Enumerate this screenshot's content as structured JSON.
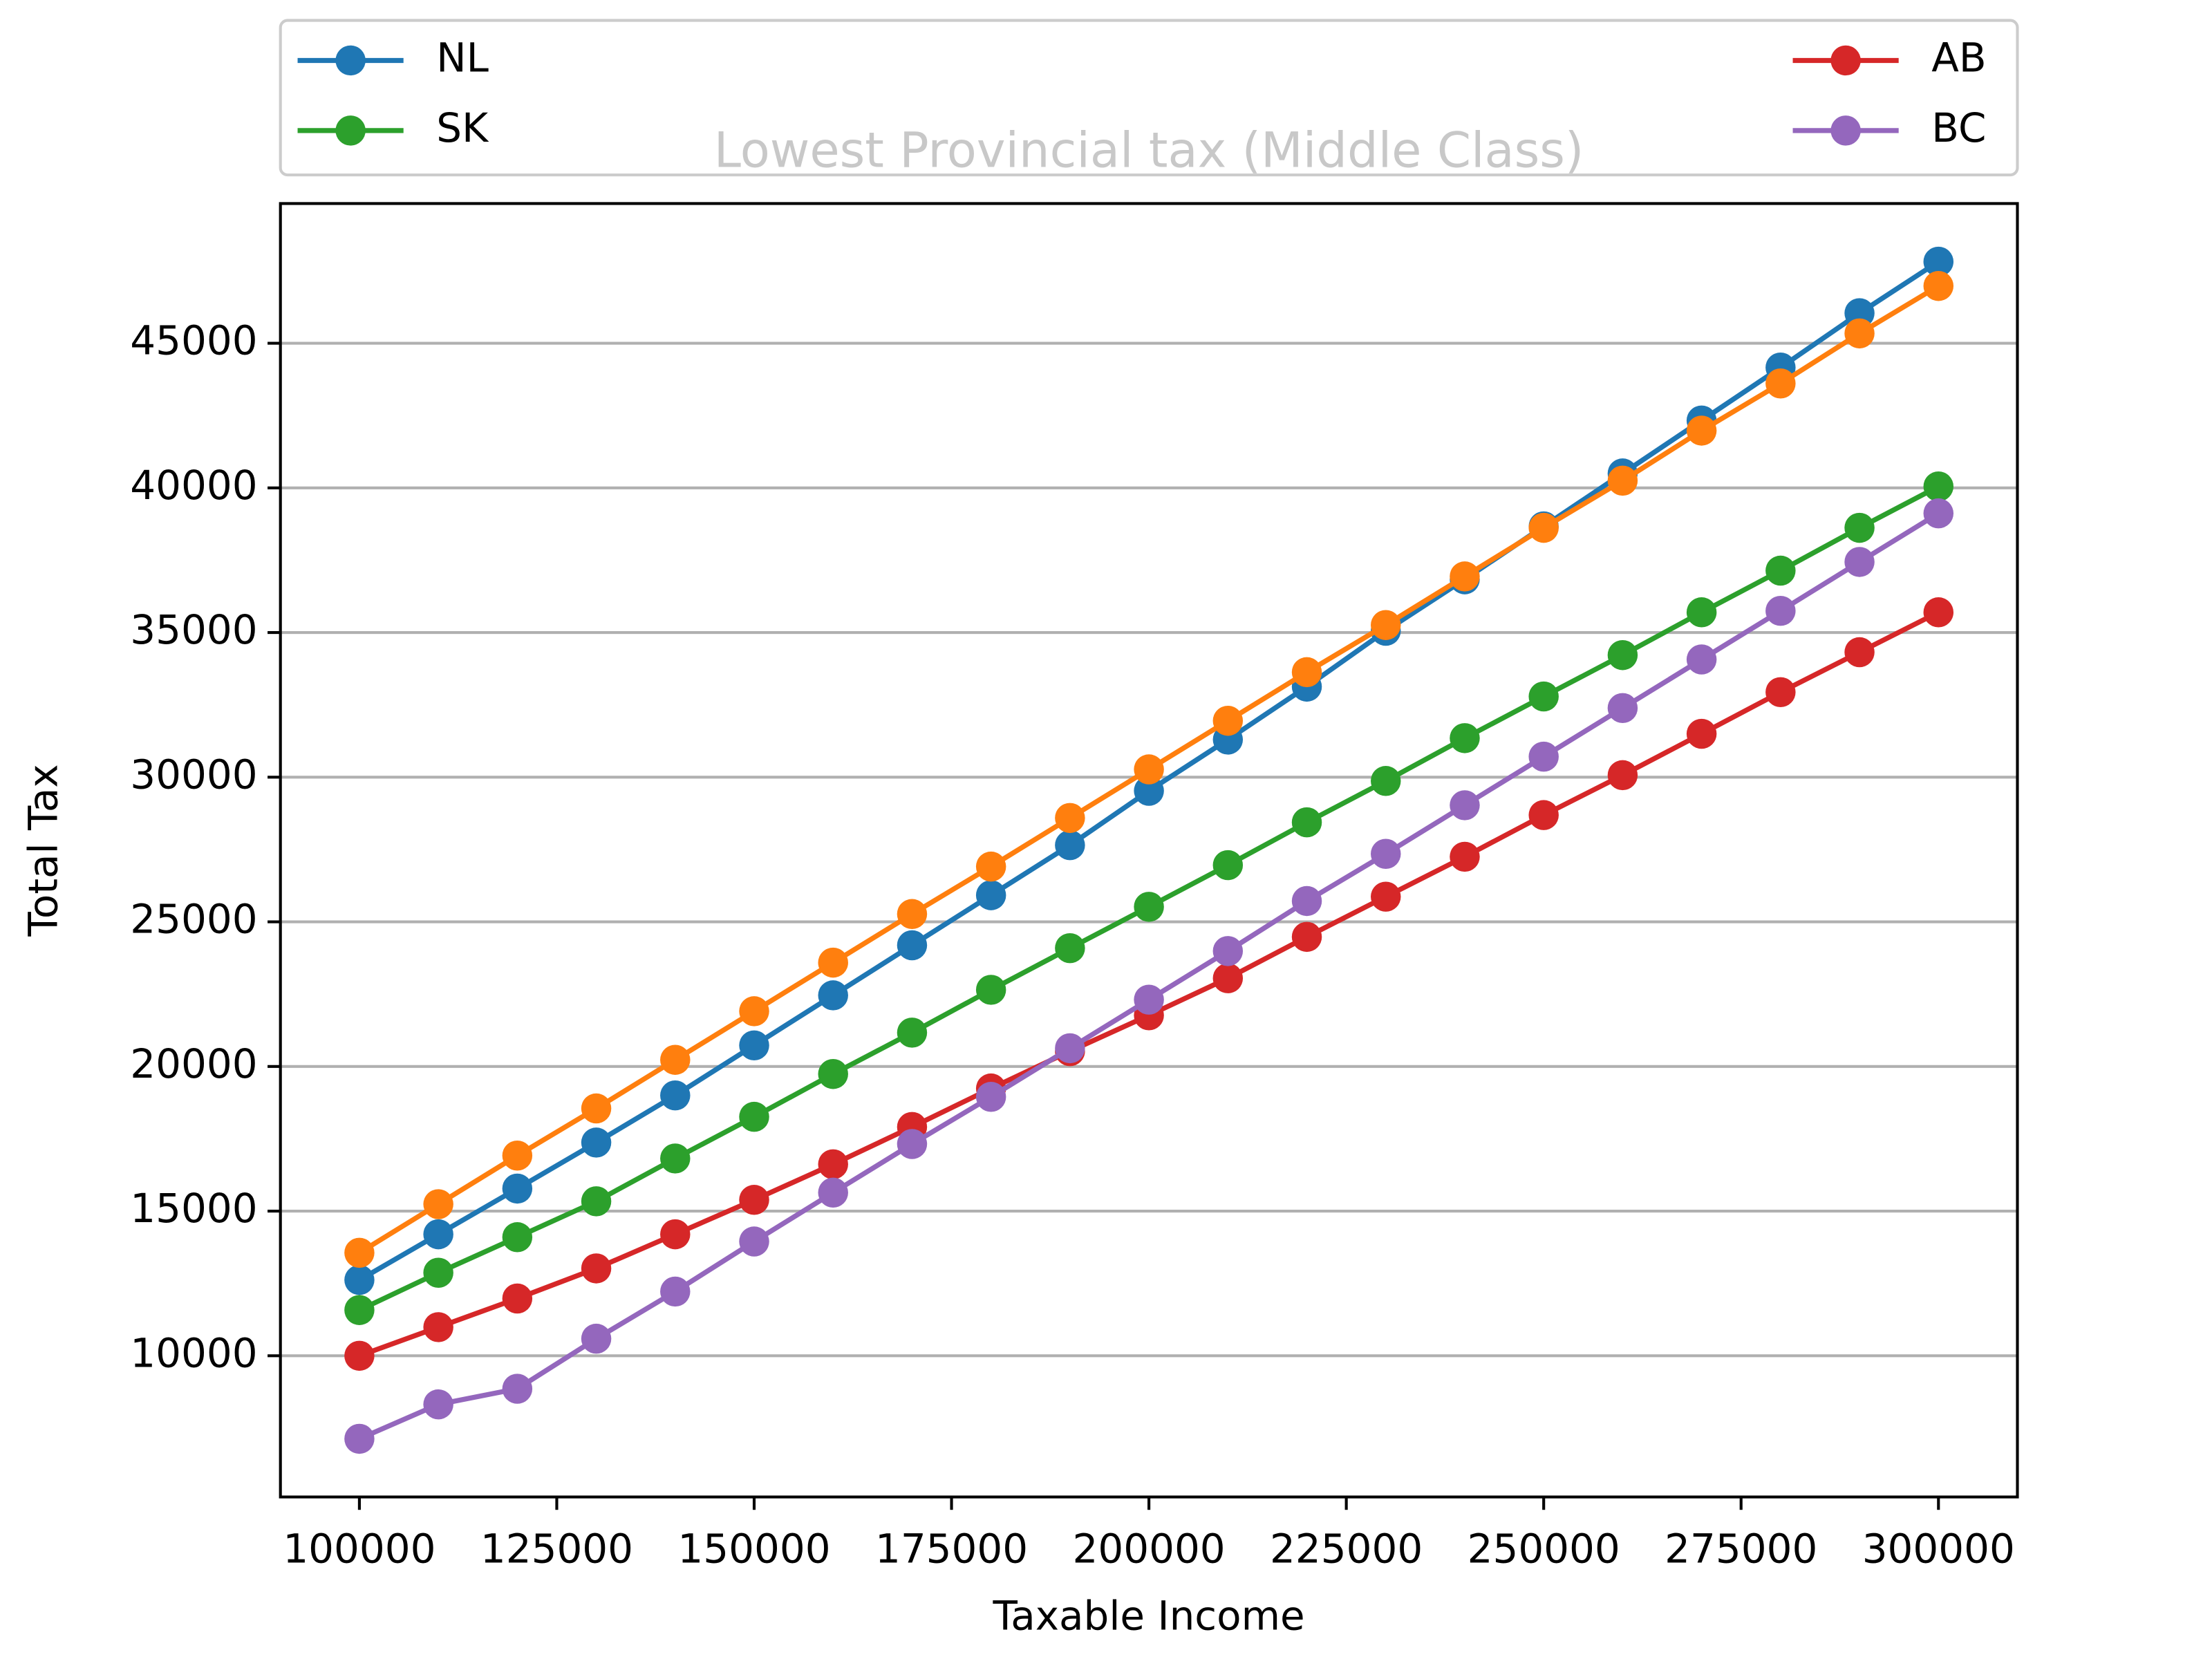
{
  "chart_data": {
    "type": "line",
    "title": "Lowest Provincial tax (Middle Class)",
    "x_label": "Taxable Income",
    "y_label": "Total Tax",
    "x": [
      100000,
      110000,
      120000,
      130000,
      140000,
      150000,
      160000,
      170000,
      180000,
      190000,
      200000,
      210000,
      220000,
      230000,
      240000,
      250000,
      260000,
      270000,
      280000,
      290000,
      300000
    ],
    "series": [
      {
        "name": "NL",
        "color": "#1f77b4",
        "values": [
          12620,
          14200,
          15780,
          17370,
          19000,
          20730,
          22460,
          24190,
          25920,
          27650,
          29530,
          31300,
          33130,
          35060,
          36840,
          38670,
          40500,
          42330,
          44160,
          46040,
          47820
        ]
      },
      {
        "color": "#ff7f0e",
        "values": [
          13560,
          15240,
          16920,
          18550,
          20230,
          21910,
          23590,
          25270,
          26910,
          28590,
          30270,
          31950,
          33630,
          35260,
          36940,
          38620,
          40250,
          41980,
          43610,
          45340,
          46980
        ]
      },
      {
        "name": "SK",
        "color": "#2ca02c",
        "values": [
          11580,
          12870,
          14100,
          15340,
          16820,
          18260,
          19740,
          21170,
          22650,
          24090,
          25520,
          26960,
          28440,
          29870,
          31350,
          32790,
          34220,
          35700,
          37140,
          38620,
          40050
        ]
      },
      {
        "name": "AB",
        "color": "#d62728",
        "values": [
          10000,
          10990,
          11980,
          13020,
          14200,
          15390,
          16620,
          17910,
          19240,
          20530,
          21770,
          23050,
          24480,
          25870,
          27250,
          28690,
          30070,
          31500,
          32940,
          34320,
          35700
        ]
      },
      {
        "name": "BC",
        "color": "#9467bd",
        "values": [
          7130,
          8320,
          8860,
          10590,
          12220,
          13950,
          15640,
          17320,
          18950,
          20630,
          22310,
          23990,
          25720,
          27350,
          29030,
          30710,
          32390,
          34070,
          35750,
          37440,
          39120
        ]
      }
    ],
    "xlim": [
      90000,
      310000
    ],
    "ylim": [
      5120,
      49830
    ],
    "xticks": [
      100000,
      125000,
      150000,
      175000,
      200000,
      225000,
      250000,
      275000,
      300000
    ],
    "yticks": [
      10000,
      15000,
      20000,
      25000,
      30000,
      35000,
      40000,
      45000
    ],
    "grid": "y",
    "legend": "top"
  }
}
